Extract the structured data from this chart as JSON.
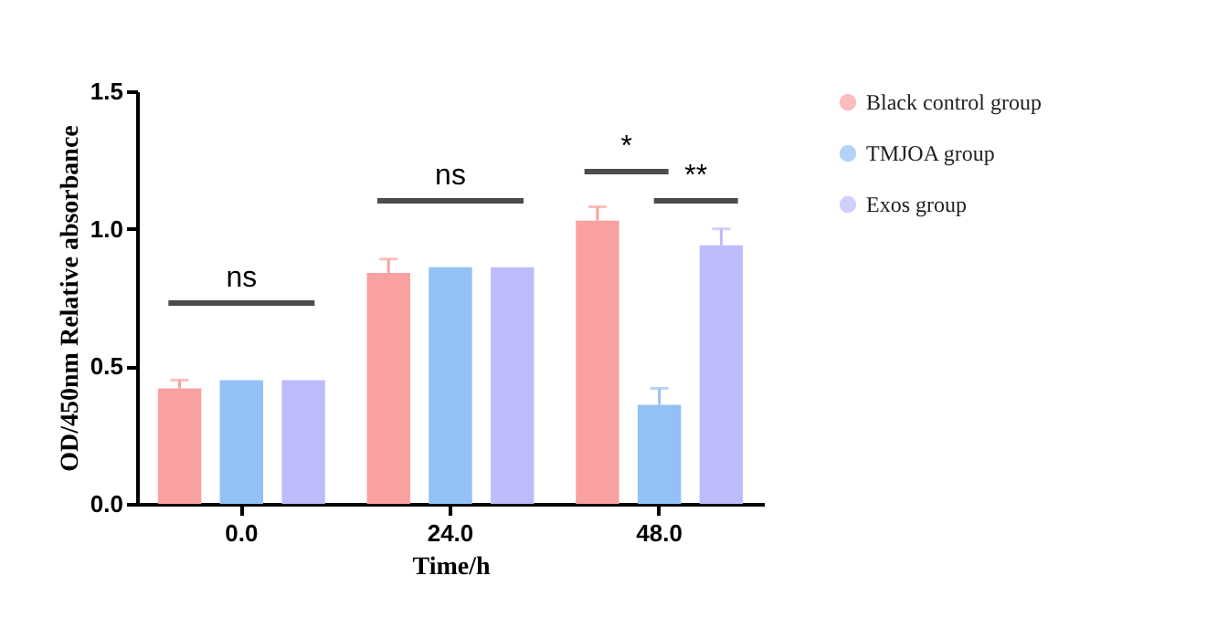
{
  "chart_data": {
    "type": "bar",
    "xlabel": "Time/h",
    "ylabel": "OD/450nm Relative absorbance",
    "categories": [
      "0.0",
      "24.0",
      "48.0"
    ],
    "series": [
      {
        "name": "Black control group",
        "color": "#f9a1a1",
        "values": [
          0.42,
          0.84,
          1.03
        ],
        "errors": [
          [
            0.42,
            0.45
          ],
          [
            0.84,
            0.89
          ],
          [
            1.03,
            1.08
          ]
        ]
      },
      {
        "name": "TMJOA group",
        "color": "#93c1f5",
        "values": [
          0.45,
          0.86,
          0.36
        ],
        "errors": [
          null,
          null,
          [
            0.36,
            0.42
          ]
        ]
      },
      {
        "name": "Exos group",
        "color": "#bdbcfb",
        "values": [
          0.45,
          0.86,
          0.94
        ],
        "errors": [
          null,
          null,
          [
            0.94,
            1.0
          ]
        ]
      }
    ],
    "ylim": [
      0,
      1.5
    ],
    "yticks": [
      {
        "value": 0,
        "label": "0.0"
      },
      0.5,
      {
        "value": 1,
        "label": "1.0"
      },
      1.5
    ],
    "legend": "right",
    "grid": false,
    "annotations": [
      "ns",
      "ns",
      "*",
      "**"
    ]
  }
}
